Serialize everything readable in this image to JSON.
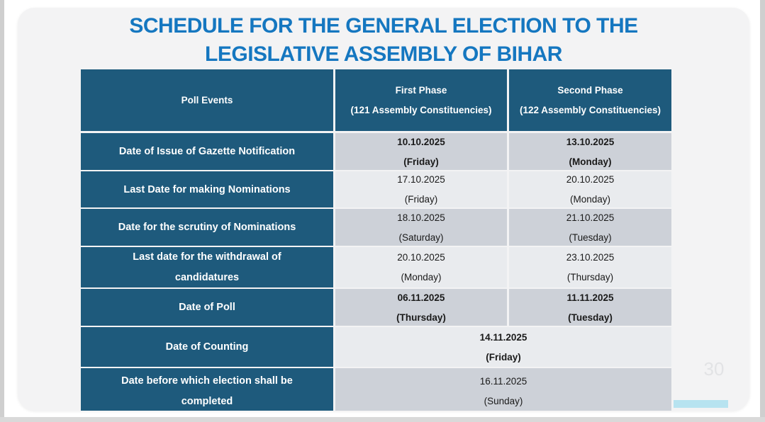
{
  "title": {
    "line1": "SCHEDULE FOR THE GENERAL ELECTION TO THE",
    "line2": "LEGISLATIVE ASSEMBLY OF BIHAR"
  },
  "page_number": "30",
  "colors": {
    "title_blue": "#1577c0",
    "header_teal": "#1e5a7c",
    "row_gray_dark": "#cdd1d8",
    "row_gray_light": "#e9ebee",
    "cyan_accent_bar": "#b7e3f0",
    "slide_background": "#f3f3f4"
  },
  "table": {
    "headers": {
      "events": "Poll Events",
      "first_phase_line1": "First Phase",
      "first_phase_line2": "(121 Assembly Constituencies)",
      "second_phase_line1": "Second Phase",
      "second_phase_line2": "(122 Assembly Constituencies)"
    },
    "rows": [
      {
        "event_line1": "Date of Issue of Gazette Notification",
        "event_line2": "",
        "first": {
          "date": "10.10.2025",
          "day": "(Friday)"
        },
        "second": {
          "date": "13.10.2025",
          "day": "(Monday)"
        }
      },
      {
        "event_line1": "Last Date for making Nominations",
        "event_line2": "",
        "first": {
          "date": "17.10.2025",
          "day": "(Friday)"
        },
        "second": {
          "date": "20.10.2025",
          "day": "(Monday)"
        }
      },
      {
        "event_line1": "Date for the scrutiny of Nominations",
        "event_line2": "",
        "first": {
          "date": "18.10.2025",
          "day": "(Saturday)"
        },
        "second": {
          "date": "21.10.2025",
          "day": "(Tuesday)"
        }
      },
      {
        "event_line1": "Last date for the withdrawal of",
        "event_line2": "candidatures",
        "first": {
          "date": "20.10.2025",
          "day": "(Monday)"
        },
        "second": {
          "date": "23.10.2025",
          "day": "(Thursday)"
        }
      },
      {
        "event_line1": "Date of Poll",
        "event_line2": "",
        "first": {
          "date": "06.11.2025",
          "day": "(Thursday)"
        },
        "second": {
          "date": "11.11.2025",
          "day": "(Tuesday)"
        }
      },
      {
        "event_line1": "Date of Counting",
        "event_line2": "",
        "merged": {
          "date": "14.11.2025",
          "day": "(Friday)"
        }
      },
      {
        "event_line1": "Date before which election shall be",
        "event_line2": "completed",
        "merged": {
          "date": "16.11.2025",
          "day": "(Sunday)"
        }
      }
    ]
  }
}
